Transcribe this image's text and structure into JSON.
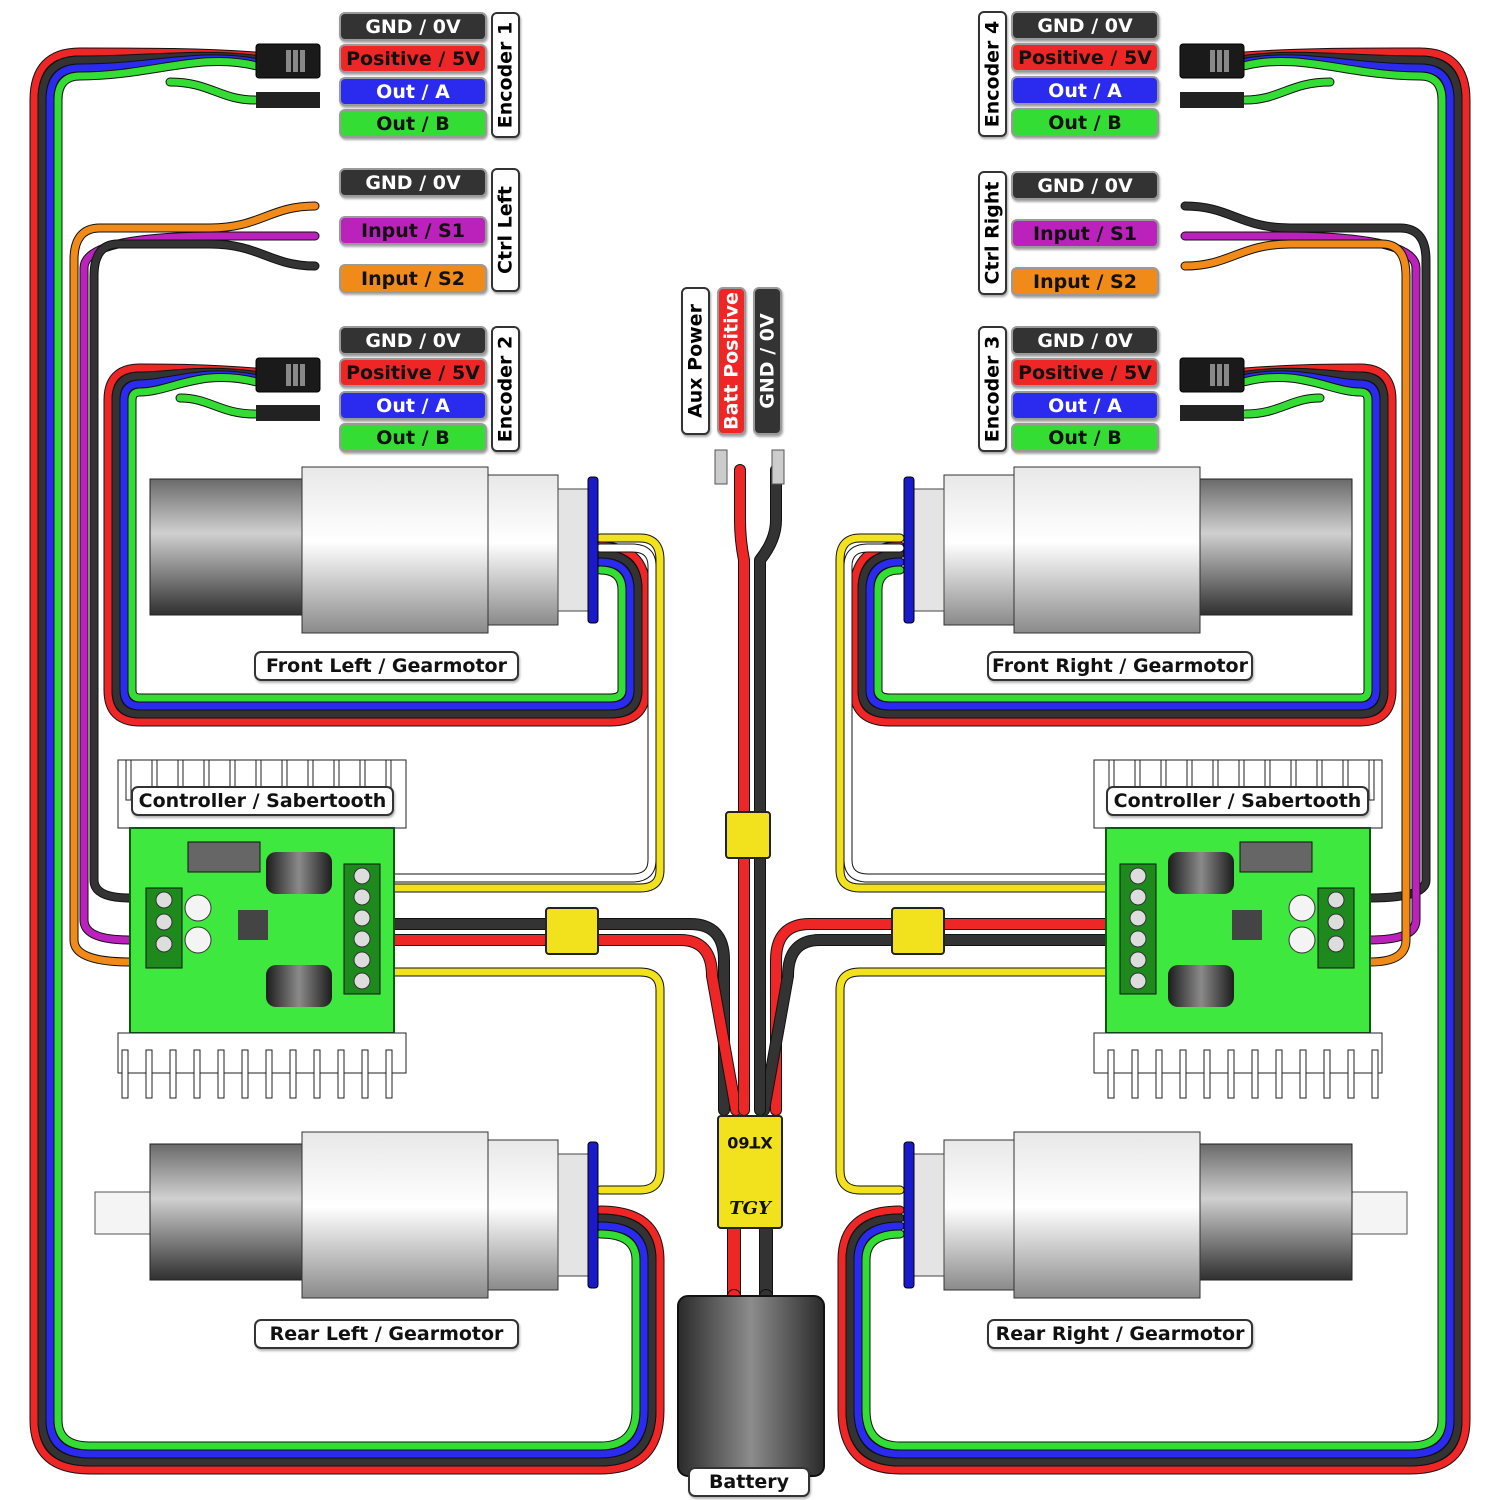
{
  "colors": {
    "gnd": "#333333",
    "pos": "#ef2626",
    "outa": "#2b2bf0",
    "outb": "#33dd33",
    "s1": "#bb22bb",
    "s2": "#f08a18",
    "yellow": "#f2e21e",
    "board": "#3ee83e"
  },
  "encoders": [
    {
      "name": "Encoder 1",
      "labels": [
        "GND / 0V",
        "Positive / 5V",
        "Out / A",
        "Out / B"
      ]
    },
    {
      "name": "Encoder 2",
      "labels": [
        "GND / 0V",
        "Positive / 5V",
        "Out / A",
        "Out / B"
      ]
    },
    {
      "name": "Encoder 3",
      "labels": [
        "GND / 0V",
        "Positive / 5V",
        "Out / A",
        "Out / B"
      ]
    },
    {
      "name": "Encoder 4",
      "labels": [
        "GND / 0V",
        "Positive / 5V",
        "Out / A",
        "Out / B"
      ]
    }
  ],
  "ctrl_left": {
    "name": "Ctrl Left",
    "labels": [
      "GND / 0V",
      "Input / S1",
      "Input / S2"
    ]
  },
  "ctrl_right": {
    "name": "Ctrl Right",
    "labels": [
      "GND / 0V",
      "Input / S1",
      "Input / S2"
    ]
  },
  "aux": {
    "labels": [
      "Aux Power",
      "Batt Positive",
      "GND / 0V"
    ]
  },
  "motors": {
    "front_left": "Front Left / Gearmotor",
    "front_right": "Front Right / Gearmotor",
    "rear_left": "Rear Left / Gearmotor",
    "rear_right": "Rear Right / Gearmotor"
  },
  "controllers": {
    "left": "Controller / Sabertooth",
    "right": "Controller / Sabertooth"
  },
  "connectors": {
    "main": [
      "XT60",
      "TGY"
    ]
  },
  "battery": "Battery"
}
